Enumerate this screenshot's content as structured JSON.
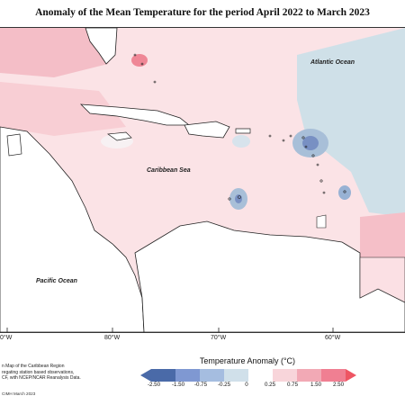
{
  "title": "Anomaly of the Mean Temperature for the period April 2022 to March 2023",
  "labels": {
    "atlantic": "Atlantic Ocean",
    "caribbean": "Caribbean Sea",
    "pacific": "Pacific Ocean"
  },
  "longitudes": [
    "0°W",
    "80°W",
    "70°W",
    "60°W"
  ],
  "legend": {
    "title": "Temperature Anomaly (°C)",
    "ticks": [
      "-2.50",
      "-1.50",
      "-0.75",
      "-0.25",
      "0",
      "0.25",
      "0.75",
      "1.50",
      "2.50"
    ],
    "colors": [
      "#4a6aa8",
      "#7f98d2",
      "#a5bde0",
      "#d0e0ea",
      "#ffffff",
      "#f8d5da",
      "#f2a9b5",
      "#f07f92",
      "#ee5563"
    ]
  },
  "note_lines": [
    "n Map of the Caribbean Region",
    "regating station based observations,",
    "CF, with NCEP/NCAR Reanalysis Data."
  ],
  "copyright": "CIMH March 2023"
}
